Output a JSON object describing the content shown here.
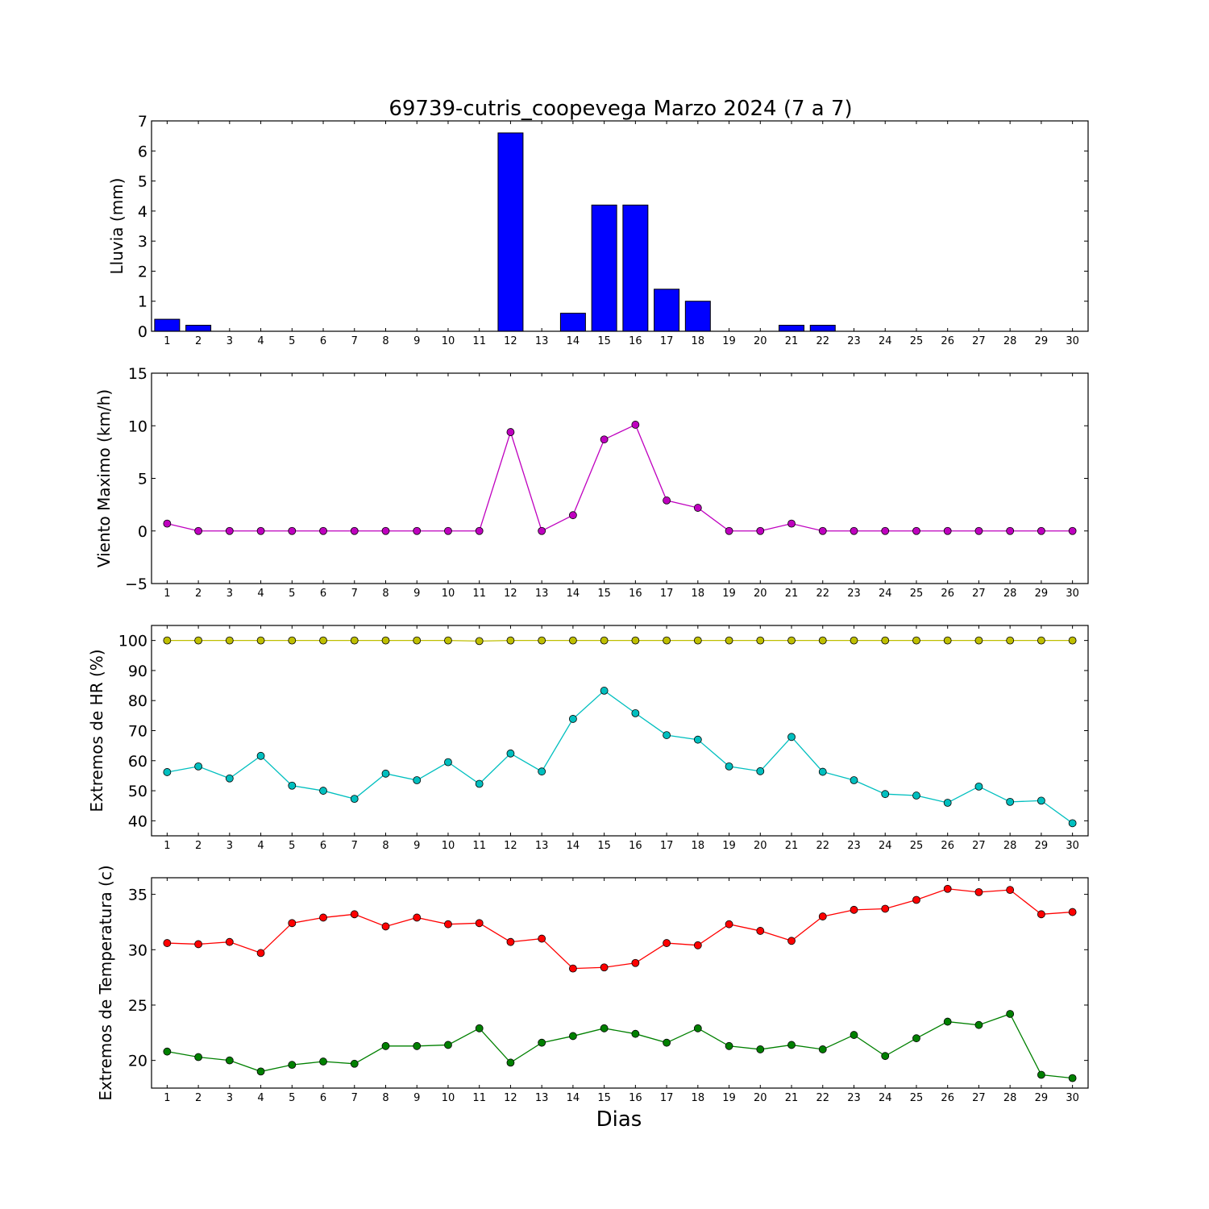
{
  "page_title": "69739-cutris_coopevega Marzo 2024  (7 a 7)",
  "shared_xlabel": "Dias",
  "chart_data": [
    {
      "type": "bar",
      "title": "69739-cutris_coopevega Marzo 2024  (7 a 7)",
      "xlabel": "",
      "ylabel": "Lluvia (mm)",
      "categories": [
        1,
        2,
        3,
        4,
        5,
        6,
        7,
        8,
        9,
        10,
        11,
        12,
        13,
        14,
        15,
        16,
        17,
        18,
        19,
        20,
        21,
        22,
        23,
        24,
        25,
        26,
        27,
        28,
        29,
        30
      ],
      "ylim": [
        0,
        7
      ],
      "yticks": [
        "0",
        "1",
        "2",
        "3",
        "4",
        "5",
        "6",
        "7"
      ],
      "grid": false,
      "color": "#0000ff",
      "series": [
        {
          "values": [
            0.4,
            0.2,
            0,
            0,
            0,
            0,
            0,
            0,
            0,
            0,
            0,
            6.6,
            0,
            0.6,
            4.2,
            4.2,
            1.4,
            1.0,
            0,
            0,
            0.2,
            0.2,
            0,
            0,
            0,
            0,
            0,
            0,
            0,
            0
          ]
        }
      ]
    },
    {
      "type": "line",
      "ylabel": "Viento Maximo (km/h)",
      "x": [
        1,
        2,
        3,
        4,
        5,
        6,
        7,
        8,
        9,
        10,
        11,
        12,
        13,
        14,
        15,
        16,
        17,
        18,
        19,
        20,
        21,
        22,
        23,
        24,
        25,
        26,
        27,
        28,
        29,
        30
      ],
      "ylim": [
        -5,
        15
      ],
      "yticks": [
        "−5",
        "0",
        "5",
        "10",
        "15"
      ],
      "grid": false,
      "series": [
        {
          "color": "#bf00bf",
          "values": [
            0.7,
            0,
            0,
            0,
            0,
            0,
            0,
            0,
            0,
            0,
            0,
            9.4,
            0,
            1.5,
            8.7,
            10.1,
            2.9,
            2.2,
            0,
            0,
            0.7,
            0,
            0,
            0,
            0,
            0,
            0,
            0,
            0,
            0
          ]
        }
      ]
    },
    {
      "type": "line",
      "ylabel": "Extremos de HR (%)",
      "x": [
        1,
        2,
        3,
        4,
        5,
        6,
        7,
        8,
        9,
        10,
        11,
        12,
        13,
        14,
        15,
        16,
        17,
        18,
        19,
        20,
        21,
        22,
        23,
        24,
        25,
        26,
        27,
        28,
        29,
        30
      ],
      "ylim": [
        35,
        105
      ],
      "yticks": [
        "40",
        "50",
        "60",
        "70",
        "80",
        "90",
        "100"
      ],
      "grid": false,
      "series": [
        {
          "color": "#bfbf00",
          "values": [
            100,
            100,
            100,
            100,
            100,
            100,
            100,
            100,
            100,
            100,
            99.8,
            100,
            100,
            100,
            100,
            100,
            100,
            100,
            100,
            100,
            100,
            100,
            100,
            100,
            100,
            100,
            100,
            100,
            100,
            100
          ]
        },
        {
          "color": "#00bfbf",
          "values": [
            56.2,
            58.1,
            54.1,
            61.6,
            51.7,
            50,
            47.3,
            55.7,
            53.5,
            59.5,
            52.3,
            62.4,
            56.4,
            73.9,
            83.3,
            75.8,
            68.5,
            67,
            58.1,
            56.5,
            67.9,
            56.3,
            53.5,
            48.9,
            48.4,
            46,
            51.4,
            46.3,
            46.7,
            39.2
          ]
        }
      ]
    },
    {
      "type": "line",
      "ylabel": "Extremos de Temperatura (c)",
      "xlabel": "Dias",
      "x": [
        1,
        2,
        3,
        4,
        5,
        6,
        7,
        8,
        9,
        10,
        11,
        12,
        13,
        14,
        15,
        16,
        17,
        18,
        19,
        20,
        21,
        22,
        23,
        24,
        25,
        26,
        27,
        28,
        29,
        30
      ],
      "ylim": [
        17.5,
        36.5
      ],
      "yticks": [
        "20",
        "25",
        "30",
        "35"
      ],
      "grid": false,
      "series": [
        {
          "color": "#ff0000",
          "values": [
            30.6,
            30.5,
            30.7,
            29.7,
            32.4,
            32.9,
            33.2,
            32.1,
            32.9,
            32.3,
            32.4,
            30.7,
            31,
            28.3,
            28.4,
            28.8,
            30.6,
            30.4,
            32.3,
            31.7,
            30.8,
            33,
            33.6,
            33.7,
            34.5,
            35.5,
            35.2,
            35.4,
            33.2,
            33.4
          ]
        },
        {
          "color": "#008000",
          "values": [
            20.8,
            20.3,
            20,
            19,
            19.6,
            19.9,
            19.7,
            21.3,
            21.3,
            21.4,
            22.9,
            19.8,
            21.6,
            22.2,
            22.9,
            22.4,
            21.6,
            22.9,
            21.3,
            21,
            21.4,
            21,
            22.3,
            20.4,
            22,
            23.5,
            23.2,
            24.2,
            18.7,
            18.4
          ]
        }
      ]
    }
  ]
}
